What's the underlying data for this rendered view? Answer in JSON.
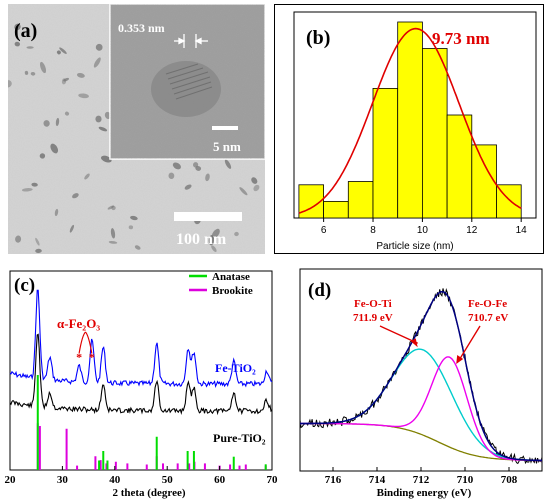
{
  "figure": {
    "a": {
      "label": "(a)",
      "inset_lattice": "0.353 nm",
      "inset_scale": "5 nm",
      "scale": "100 nm"
    },
    "b": {
      "label": "(b)",
      "peak_label": "9.73 nm",
      "xlabel": "Particle size (nm)",
      "xticks": [
        "6",
        "8",
        "10",
        "12",
        "14"
      ]
    },
    "c": {
      "label": "(c)",
      "legend": [
        "Anatase",
        "Brookite"
      ],
      "annot_fe2o3": "α-Fe₂O₃",
      "series_labels": [
        "Fe-TiO₂",
        "Pure-TiO₂"
      ],
      "xlabel": "2 theta (degree)",
      "xticks": [
        "20",
        "30",
        "40",
        "50",
        "60",
        "70"
      ]
    },
    "d": {
      "label": "(d)",
      "peak1_name": "Fe-O-Ti",
      "peak1_energy": "711.9 eV",
      "peak2_name": "Fe-O-Fe",
      "peak2_energy": "710.7 eV",
      "xlabel": "Binding energy (eV)",
      "xticks": [
        "716",
        "714",
        "712",
        "710",
        "708"
      ]
    }
  },
  "colors": {
    "bar_fill": "#ffff00",
    "fit_curve": "#e00000",
    "anatase": "#00dd00",
    "brookite": "#dd00dd",
    "fe_tio2_trace": "#0000ff",
    "pure_tio2_trace": "#000000",
    "annotation_red": "#e00000",
    "xps_fit1": "#00cccc",
    "xps_fit2": "#ee00ee",
    "xps_background": "#808000",
    "xps_envelope": "#000080"
  },
  "chart_data": [
    {
      "type": "bar",
      "panel": "b",
      "title": "",
      "xlabel": "Particle size (nm)",
      "ylabel": "",
      "xlim": [
        4.8,
        14.6
      ],
      "bin_width": 1,
      "x": [
        5.5,
        6.5,
        7.5,
        8.5,
        9.5,
        10.5,
        11.5,
        12.5,
        13.5
      ],
      "values": [
        10,
        5,
        11,
        39,
        59,
        51,
        31,
        22,
        10
      ],
      "fit": {
        "type": "gaussian",
        "center": 9.73,
        "amplitude": 57,
        "sigma": 1.75
      },
      "annotation": "9.73 nm"
    },
    {
      "type": "line",
      "panel": "c",
      "title": "",
      "xlabel": "2 theta (degree)",
      "ylabel": "",
      "xlim": [
        20,
        70
      ],
      "series": [
        {
          "name": "Fe-TiO₂",
          "peaks": [
            [
              25.3,
              1.0
            ],
            [
              27.6,
              0.25
            ],
            [
              35.7,
              0.25
            ],
            [
              37.8,
              0.4
            ],
            [
              48.0,
              0.45
            ],
            [
              54.0,
              0.4
            ],
            [
              55.1,
              0.35
            ],
            [
              62.7,
              0.25
            ],
            [
              69.0,
              0.15
            ]
          ]
        },
        {
          "name": "Pure-TiO₂",
          "peaks": [
            [
              25.3,
              1.0
            ],
            [
              27.6,
              0.2
            ],
            [
              37.8,
              0.35
            ],
            [
              48.0,
              0.4
            ],
            [
              54.0,
              0.35
            ],
            [
              55.1,
              0.3
            ],
            [
              62.7,
              0.25
            ],
            [
              69.0,
              0.15
            ]
          ]
        }
      ],
      "reference_lines": {
        "Anatase": [
          [
            25.3,
            1.0
          ],
          [
            37.0,
            0.1
          ],
          [
            37.8,
            0.2
          ],
          [
            38.6,
            0.1
          ],
          [
            48.0,
            0.35
          ],
          [
            53.9,
            0.2
          ],
          [
            55.1,
            0.2
          ],
          [
            62.7,
            0.14
          ],
          [
            68.8,
            0.06
          ]
        ],
        "Brookite": [
          [
            25.3,
            0.85
          ],
          [
            25.7,
            0.8
          ],
          [
            30.8,
            0.75
          ],
          [
            32.8,
            0.08
          ],
          [
            36.3,
            0.25
          ],
          [
            37.3,
            0.18
          ],
          [
            38.4,
            0.12
          ],
          [
            40.2,
            0.15
          ],
          [
            42.4,
            0.12
          ],
          [
            46.1,
            0.1
          ],
          [
            48.0,
            0.25
          ],
          [
            49.2,
            0.12
          ],
          [
            52.0,
            0.12
          ],
          [
            54.2,
            0.12
          ],
          [
            55.2,
            0.15
          ],
          [
            57.2,
            0.12
          ],
          [
            60.0,
            0.08
          ],
          [
            62.0,
            0.1
          ],
          [
            63.8,
            0.08
          ],
          [
            65.0,
            0.1
          ],
          [
            68.8,
            0.08
          ]
        ]
      },
      "annotation": "α-Fe₂O₃",
      "annotation_x": [
        33.2,
        35.6
      ]
    },
    {
      "type": "line",
      "panel": "d",
      "title": "",
      "xlabel": "Binding energy (eV)",
      "ylabel": "",
      "xlim": [
        717.5,
        706.5
      ],
      "x_reversed": true,
      "components": [
        {
          "name": "Fe-O-Ti",
          "center": 711.9,
          "fwhm": 3.2,
          "height": 0.55
        },
        {
          "name": "Fe-O-Fe",
          "center": 710.7,
          "fwhm": 1.9,
          "height": 0.58
        }
      ],
      "annotations": [
        "Fe-O-Ti 711.9 eV",
        "Fe-O-Fe 710.7 eV"
      ]
    }
  ]
}
